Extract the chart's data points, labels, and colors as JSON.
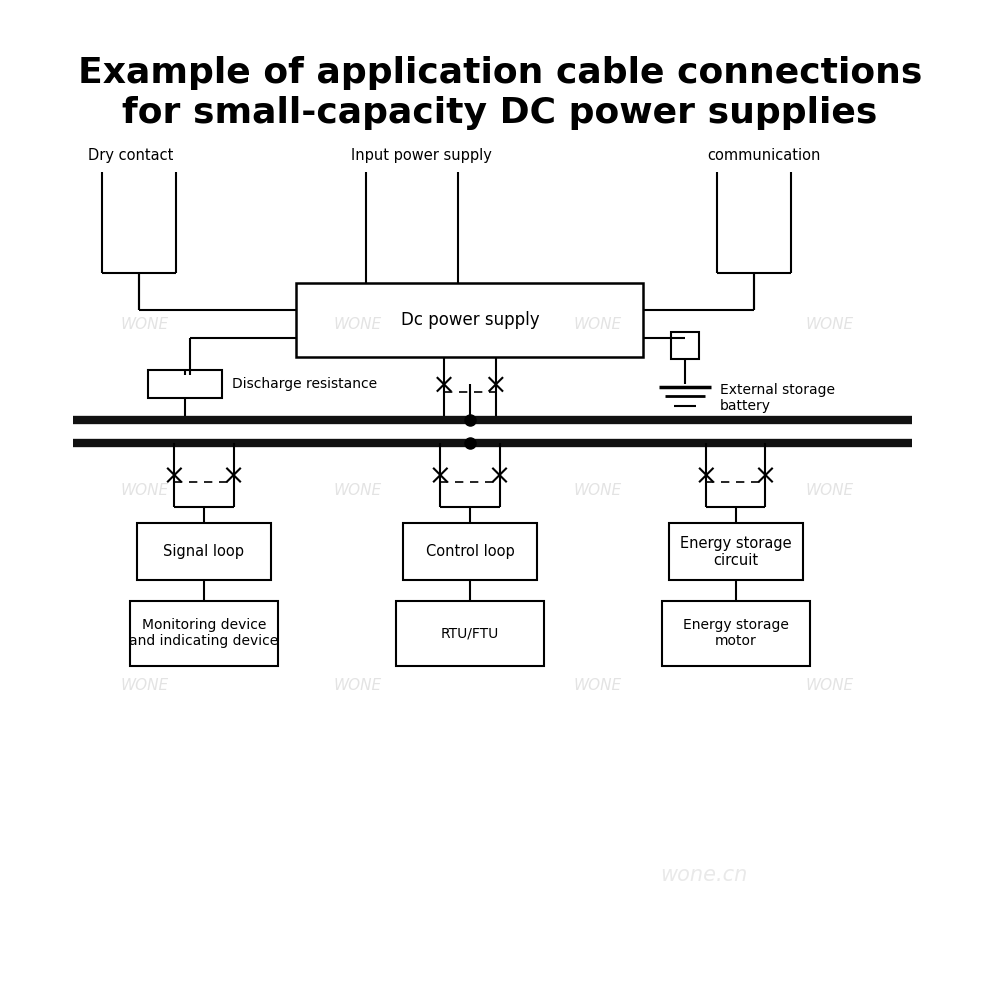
{
  "title_line1": "Example of application cable connections",
  "title_line2": "for small-capacity DC power supplies",
  "title_fontsize": 26,
  "label_dry_contact": "Dry contact",
  "label_input_power": "Input power supply",
  "label_communication": "communication",
  "label_dc_supply": "Dc power supply",
  "label_discharge": "Discharge resistance",
  "label_ext_battery": "External storage\nbattery",
  "label_signal_loop": "Signal loop",
  "label_control_loop": "Control loop",
  "label_energy_circuit": "Energy storage\ncircuit",
  "label_monitor": "Monitoring device\nand indicating device",
  "label_rtu": "RTU/FTU",
  "label_energy_motor": "Energy storage\nmotor",
  "watermark": "WONE",
  "watermark2": "wone.cn",
  "bg_color": "#ffffff",
  "line_color": "#000000",
  "text_color": "#000000",
  "watermark_color": "#d8d8d8"
}
